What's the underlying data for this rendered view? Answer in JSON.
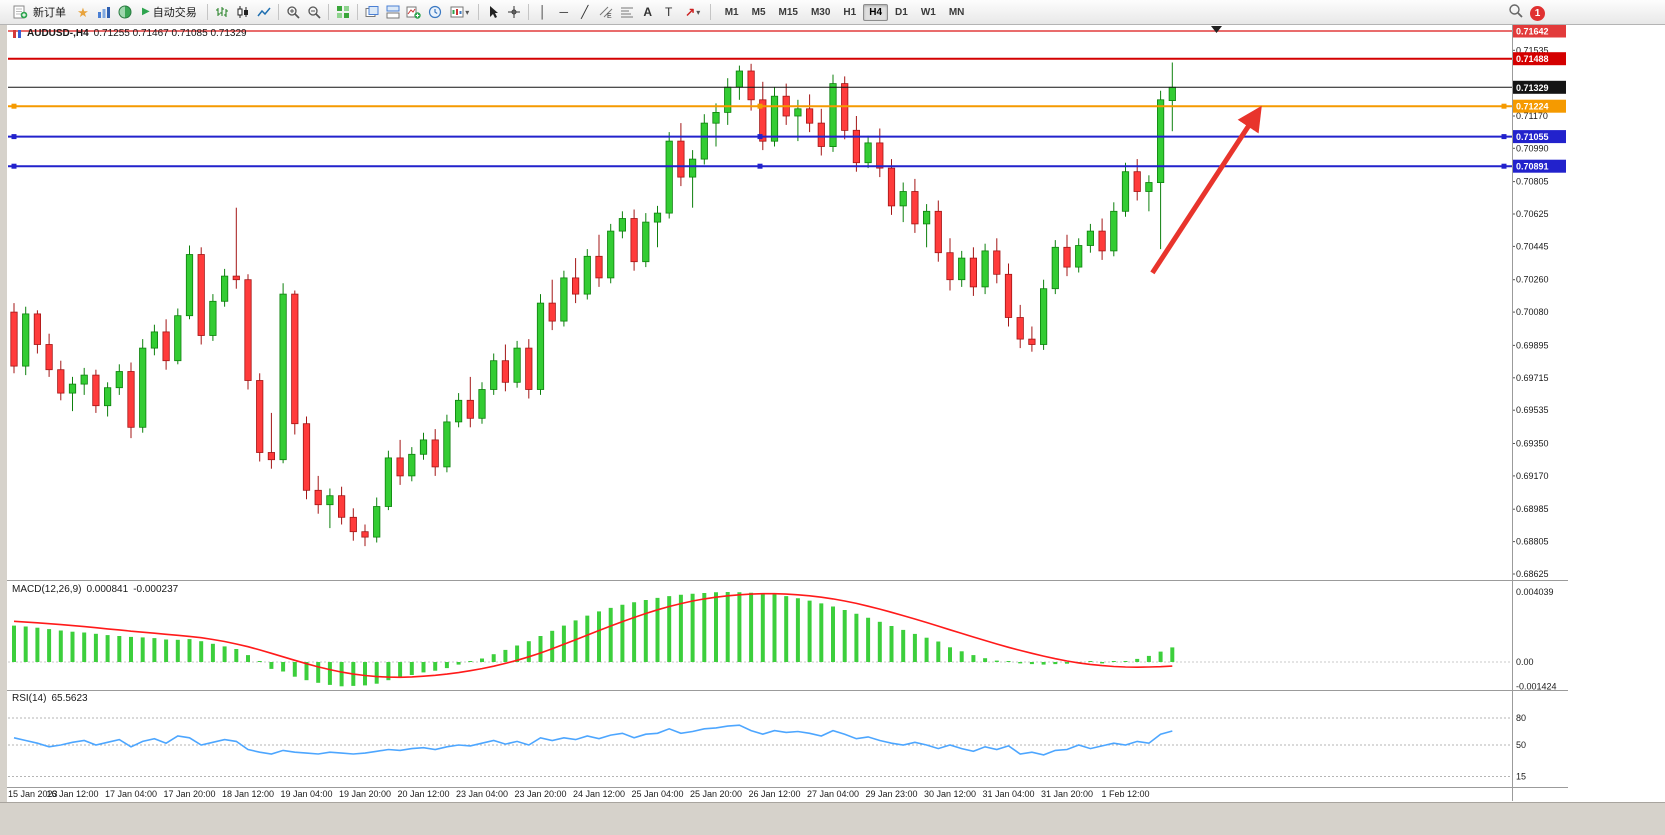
{
  "toolbar": {
    "new_order_label": "新订单",
    "auto_trading_label": "自动交易",
    "timeframes": [
      "M1",
      "M5",
      "M15",
      "M30",
      "H1",
      "H4",
      "D1",
      "W1",
      "MN"
    ],
    "active_timeframe": "H4",
    "notification_count": "1",
    "icons": [
      "new-order",
      "favorites",
      "profiles",
      "market-watch",
      "auto-trading-play",
      "bar-chart",
      "candlestick",
      "line-chart",
      "zoom-in",
      "zoom-out",
      "tile-windows",
      "cascade-windows",
      "arrange-windows",
      "new-chart",
      "period-clock",
      "templates",
      "cursor",
      "crosshair",
      "vertical-line",
      "horizontal-line",
      "trendline",
      "equidistant-channel",
      "fibonacci",
      "text",
      "text-label",
      "arrows",
      "search",
      "notification"
    ]
  },
  "chart_header": {
    "symbol_period": "AUDUSD-,H4",
    "ohlc_text": "0.71255 0.71467 0.71085 0.71329"
  },
  "chart_data": {
    "type": "candlestick",
    "symbol": "AUDUSD",
    "timeframe": "H4",
    "current_bar_ohlc": [
      0.71255,
      0.71467,
      0.71085,
      0.71329
    ],
    "label_every_n_bars": 5,
    "x_labels": [
      "15 Jan 2023",
      "16 Jan 12:00",
      "17 Jan 04:00",
      "17 Jan 20:00",
      "18 Jan 12:00",
      "19 Jan 04:00",
      "19 Jan 20:00",
      "20 Jan 12:00",
      "23 Jan 04:00",
      "23 Jan 20:00",
      "24 Jan 12:00",
      "25 Jan 04:00",
      "25 Jan 20:00",
      "26 Jan 12:00",
      "27 Jan 04:00",
      "29 Jan 23:00",
      "30 Jan 12:00",
      "31 Jan 04:00",
      "31 Jan 20:00",
      "1 Feb 12:00"
    ],
    "candle_colors": {
      "up": "#33cc33",
      "down": "#ff3b3b",
      "up_border": "#0d800d",
      "down_border": "#a31515"
    },
    "candles": [
      [
        0.7008,
        0.7013,
        0.6974,
        0.6978
      ],
      [
        0.6978,
        0.7011,
        0.6973,
        0.7007
      ],
      [
        0.7007,
        0.7009,
        0.6985,
        0.699
      ],
      [
        0.699,
        0.6996,
        0.6972,
        0.6976
      ],
      [
        0.6976,
        0.6981,
        0.6959,
        0.6963
      ],
      [
        0.6963,
        0.6972,
        0.6953,
        0.6968
      ],
      [
        0.6968,
        0.6977,
        0.6962,
        0.6973
      ],
      [
        0.6973,
        0.6976,
        0.6952,
        0.6956
      ],
      [
        0.6956,
        0.6969,
        0.695,
        0.6966
      ],
      [
        0.6966,
        0.6979,
        0.6962,
        0.6975
      ],
      [
        0.6975,
        0.698,
        0.6938,
        0.6944
      ],
      [
        0.6944,
        0.6993,
        0.6941,
        0.6988
      ],
      [
        0.6988,
        0.7001,
        0.6984,
        0.6997
      ],
      [
        0.6997,
        0.7004,
        0.6976,
        0.6981
      ],
      [
        0.6981,
        0.701,
        0.6979,
        0.7006
      ],
      [
        0.7006,
        0.7045,
        0.7004,
        0.704
      ],
      [
        0.704,
        0.7044,
        0.699,
        0.6995
      ],
      [
        0.6995,
        0.7018,
        0.6992,
        0.7014
      ],
      [
        0.7014,
        0.7032,
        0.7011,
        0.7028
      ],
      [
        0.7028,
        0.7066,
        0.7021,
        0.7026
      ],
      [
        0.7026,
        0.7029,
        0.6965,
        0.697
      ],
      [
        0.697,
        0.6974,
        0.6925,
        0.693
      ],
      [
        0.693,
        0.6952,
        0.6921,
        0.6926
      ],
      [
        0.6926,
        0.7024,
        0.6924,
        0.7018
      ],
      [
        0.7018,
        0.702,
        0.694,
        0.6946
      ],
      [
        0.6946,
        0.695,
        0.6904,
        0.6909
      ],
      [
        0.6909,
        0.6917,
        0.6896,
        0.6901
      ],
      [
        0.6901,
        0.691,
        0.6888,
        0.6906
      ],
      [
        0.6906,
        0.6911,
        0.689,
        0.6894
      ],
      [
        0.6894,
        0.6899,
        0.6881,
        0.6886
      ],
      [
        0.6886,
        0.689,
        0.6878,
        0.6883
      ],
      [
        0.6883,
        0.6905,
        0.688,
        0.69
      ],
      [
        0.69,
        0.6931,
        0.6898,
        0.6927
      ],
      [
        0.6927,
        0.6937,
        0.6912,
        0.6917
      ],
      [
        0.6917,
        0.6933,
        0.6914,
        0.6929
      ],
      [
        0.6929,
        0.6941,
        0.6926,
        0.6937
      ],
      [
        0.6937,
        0.6943,
        0.6917,
        0.6922
      ],
      [
        0.6922,
        0.6951,
        0.6919,
        0.6947
      ],
      [
        0.6947,
        0.6963,
        0.6944,
        0.6959
      ],
      [
        0.6959,
        0.6972,
        0.6944,
        0.6949
      ],
      [
        0.6949,
        0.6969,
        0.6946,
        0.6965
      ],
      [
        0.6965,
        0.6985,
        0.6962,
        0.6981
      ],
      [
        0.6981,
        0.699,
        0.6964,
        0.6969
      ],
      [
        0.6969,
        0.6992,
        0.6966,
        0.6988
      ],
      [
        0.6988,
        0.6993,
        0.696,
        0.6965
      ],
      [
        0.6965,
        0.7018,
        0.6962,
        0.7013
      ],
      [
        0.7013,
        0.7026,
        0.6998,
        0.7003
      ],
      [
        0.7003,
        0.7031,
        0.7,
        0.7027
      ],
      [
        0.7027,
        0.7038,
        0.7013,
        0.7018
      ],
      [
        0.7018,
        0.7043,
        0.7015,
        0.7039
      ],
      [
        0.7039,
        0.7051,
        0.7022,
        0.7027
      ],
      [
        0.7027,
        0.7057,
        0.7024,
        0.7053
      ],
      [
        0.7053,
        0.7064,
        0.7049,
        0.706
      ],
      [
        0.706,
        0.7065,
        0.7031,
        0.7036
      ],
      [
        0.7036,
        0.7063,
        0.7033,
        0.7058
      ],
      [
        0.7058,
        0.7067,
        0.7044,
        0.7063
      ],
      [
        0.7063,
        0.7108,
        0.706,
        0.7103
      ],
      [
        0.7103,
        0.7113,
        0.7078,
        0.7083
      ],
      [
        0.7083,
        0.7098,
        0.7066,
        0.7093
      ],
      [
        0.7093,
        0.7118,
        0.709,
        0.7113
      ],
      [
        0.7113,
        0.7124,
        0.71,
        0.7119
      ],
      [
        0.7119,
        0.7138,
        0.7112,
        0.7133
      ],
      [
        0.7133,
        0.7145,
        0.7126,
        0.7142
      ],
      [
        0.7142,
        0.7146,
        0.712,
        0.7126
      ],
      [
        0.7126,
        0.7136,
        0.7098,
        0.7103
      ],
      [
        0.7103,
        0.7133,
        0.71,
        0.7128
      ],
      [
        0.7128,
        0.7135,
        0.7112,
        0.7117
      ],
      [
        0.7117,
        0.7126,
        0.7103,
        0.7121
      ],
      [
        0.7121,
        0.7129,
        0.7108,
        0.7113
      ],
      [
        0.7113,
        0.7121,
        0.7095,
        0.71
      ],
      [
        0.71,
        0.714,
        0.7097,
        0.7135
      ],
      [
        0.7135,
        0.7139,
        0.7104,
        0.7109
      ],
      [
        0.7109,
        0.7117,
        0.7086,
        0.7091
      ],
      [
        0.7091,
        0.7106,
        0.7088,
        0.7102
      ],
      [
        0.7102,
        0.711,
        0.7083,
        0.7088
      ],
      [
        0.7088,
        0.7093,
        0.7062,
        0.7067
      ],
      [
        0.7067,
        0.708,
        0.7058,
        0.7075
      ],
      [
        0.7075,
        0.7082,
        0.7052,
        0.7057
      ],
      [
        0.7057,
        0.7068,
        0.7044,
        0.7064
      ],
      [
        0.7064,
        0.707,
        0.7036,
        0.7041
      ],
      [
        0.7041,
        0.7049,
        0.702,
        0.7026
      ],
      [
        0.7026,
        0.7042,
        0.7022,
        0.7038
      ],
      [
        0.7038,
        0.7044,
        0.7017,
        0.7022
      ],
      [
        0.7022,
        0.7046,
        0.7018,
        0.7042
      ],
      [
        0.7042,
        0.7049,
        0.7024,
        0.7029
      ],
      [
        0.7029,
        0.7035,
        0.7,
        0.7005
      ],
      [
        0.7005,
        0.7012,
        0.6988,
        0.6993
      ],
      [
        0.6993,
        0.7,
        0.6986,
        0.699
      ],
      [
        0.699,
        0.7026,
        0.6987,
        0.7021
      ],
      [
        0.7021,
        0.7048,
        0.7018,
        0.7044
      ],
      [
        0.7044,
        0.7051,
        0.7028,
        0.7033
      ],
      [
        0.7033,
        0.7049,
        0.703,
        0.7045
      ],
      [
        0.7045,
        0.7057,
        0.7041,
        0.7053
      ],
      [
        0.7053,
        0.706,
        0.7037,
        0.7042
      ],
      [
        0.7042,
        0.7069,
        0.7039,
        0.7064
      ],
      [
        0.7064,
        0.7091,
        0.7061,
        0.7086
      ],
      [
        0.7086,
        0.7093,
        0.707,
        0.7075
      ],
      [
        0.7075,
        0.7084,
        0.7064,
        0.708
      ],
      [
        0.708,
        0.7131,
        0.7043,
        0.7126
      ],
      [
        0.71255,
        0.71467,
        0.71085,
        0.71329
      ]
    ],
    "y_axis": {
      "top": 0.71642,
      "bottom": 0.68625,
      "ticks": [
        0.71535,
        0.7117,
        0.7099,
        0.70805,
        0.70625,
        0.70445,
        0.7026,
        0.7008,
        0.69895,
        0.69715,
        0.69535,
        0.6935,
        0.6917,
        0.68985,
        0.68805,
        0.68625
      ]
    },
    "horizontal_lines": [
      {
        "price": 0.71642,
        "color": "#e23b3b",
        "width": 1.4,
        "handles": false
      },
      {
        "price": 0.71488,
        "color": "#d40000",
        "width": 2,
        "handles": false
      },
      {
        "price": 0.71329,
        "color": "#141414",
        "width": 1,
        "handles": false,
        "role": "current-price"
      },
      {
        "price": 0.71224,
        "color": "#f59a00",
        "width": 2,
        "handles": true
      },
      {
        "price": 0.71055,
        "color": "#2222cc",
        "width": 2,
        "handles": true
      },
      {
        "price": 0.70891,
        "color": "#2222cc",
        "width": 2,
        "handles": true
      }
    ],
    "arrow_annotation": {
      "x1_bar": 97.3,
      "y1_price": 0.70298,
      "x2_bar": 106.3,
      "y2_price": 0.71192,
      "color": "#e8342c",
      "width": 5
    },
    "macd": {
      "name": "MACD(12,26,9)",
      "value_main": "0.000841",
      "value_signal": "-0.000237",
      "histogram_color": "#3ccf3c",
      "signal_color": "#ff1a1a",
      "scale": {
        "max": 0.004039,
        "zero": 0,
        "min": -0.001424
      },
      "scale_labels": [
        "0.004039",
        "0.00",
        "-0.001424"
      ],
      "histogram": [
        0.0021,
        0.00205,
        0.00198,
        0.0019,
        0.00182,
        0.00175,
        0.0017,
        0.00163,
        0.00155,
        0.0015,
        0.00145,
        0.00142,
        0.00138,
        0.0013,
        0.00128,
        0.00132,
        0.0012,
        0.00105,
        0.0009,
        0.00075,
        0.0004,
        0.0,
        -0.0004,
        -0.00055,
        -0.00085,
        -0.00105,
        -0.0012,
        -0.00132,
        -0.0014,
        -0.00138,
        -0.00135,
        -0.00125,
        -0.00105,
        -0.0009,
        -0.00075,
        -0.0006,
        -0.0005,
        -0.00035,
        -0.00015,
        0.0,
        0.0002,
        0.00045,
        0.0007,
        0.00095,
        0.0012,
        0.0015,
        0.0018,
        0.0021,
        0.0024,
        0.00268,
        0.00292,
        0.00312,
        0.0033,
        0.00345,
        0.00358,
        0.0037,
        0.0038,
        0.00388,
        0.00394,
        0.00398,
        0.00402,
        0.00404,
        0.00403,
        0.004,
        0.00396,
        0.0039,
        0.0038,
        0.00368,
        0.00354,
        0.00338,
        0.0032,
        0.003,
        0.00278,
        0.00255,
        0.00232,
        0.00208,
        0.00185,
        0.00162,
        0.0014,
        0.00118,
        0.00085,
        0.00062,
        0.0004,
        0.00022,
        8e-05,
        -2e-05,
        -8e-05,
        -0.00012,
        -0.00015,
        -0.00012,
        -0.0001,
        -6e-05,
        -4e-05,
        -8e-05,
        -2e-05,
        6e-05,
        0.00018,
        0.00035,
        0.0006,
        0.000841
      ],
      "signal": [
        0.00235,
        0.0023,
        0.00226,
        0.00221,
        0.00216,
        0.0021,
        0.00204,
        0.00198,
        0.00191,
        0.00185,
        0.00178,
        0.00172,
        0.00166,
        0.0016,
        0.00154,
        0.00148,
        0.0014,
        0.0013,
        0.00118,
        0.00104,
        0.00088,
        0.0007,
        0.0005,
        0.0003,
        0.0001,
        -0.0001,
        -0.00028,
        -0.00044,
        -0.00058,
        -0.0007,
        -0.00078,
        -0.00084,
        -0.00087,
        -0.00088,
        -0.00086,
        -0.00082,
        -0.00077,
        -0.0007,
        -0.00061,
        -0.0005,
        -0.00038,
        -0.00024,
        -8e-05,
        0.0001,
        0.0003,
        0.00052,
        0.00076,
        0.00102,
        0.00128,
        0.00155,
        0.00182,
        0.00208,
        0.00233,
        0.00257,
        0.0028,
        0.00301,
        0.0032,
        0.00337,
        0.00352,
        0.00364,
        0.00374,
        0.00382,
        0.00388,
        0.00392,
        0.00394,
        0.00394,
        0.00392,
        0.00388,
        0.00382,
        0.00374,
        0.00364,
        0.00352,
        0.00338,
        0.00322,
        0.00305,
        0.00287,
        0.00268,
        0.00248,
        0.00228,
        0.00207,
        0.00186,
        0.00165,
        0.00144,
        0.00124,
        0.00104,
        0.00085,
        0.00067,
        0.0005,
        0.00034,
        0.00019,
        6e-05,
        -5e-05,
        -0.00014,
        -0.00021,
        -0.00026,
        -0.00029,
        -0.0003,
        -0.00029,
        -0.00027,
        -0.000237
      ]
    },
    "rsi": {
      "name": "RSI(14)",
      "value": "65.5623",
      "line_color": "#4da6ff",
      "levels": [
        80,
        50,
        15
      ],
      "values": [
        58,
        55,
        52,
        48,
        50,
        53,
        55,
        50,
        53,
        56,
        48,
        54,
        57,
        52,
        60,
        58,
        50,
        53,
        56,
        54,
        45,
        42,
        40,
        44,
        42,
        41,
        40,
        42,
        41,
        40,
        41,
        43,
        45,
        44,
        46,
        47,
        45,
        48,
        50,
        49,
        52,
        55,
        51,
        54,
        50,
        58,
        55,
        58,
        56,
        60,
        57,
        61,
        63,
        58,
        62,
        63,
        68,
        63,
        65,
        68,
        69,
        71,
        72,
        66,
        62,
        66,
        64,
        65,
        63,
        60,
        66,
        62,
        57,
        59,
        55,
        52,
        50,
        53,
        50,
        46,
        50,
        46,
        43,
        48,
        45,
        49,
        40,
        42,
        39,
        44,
        45,
        50,
        46,
        49,
        52,
        50,
        54,
        52,
        62,
        65.56
      ]
    }
  }
}
